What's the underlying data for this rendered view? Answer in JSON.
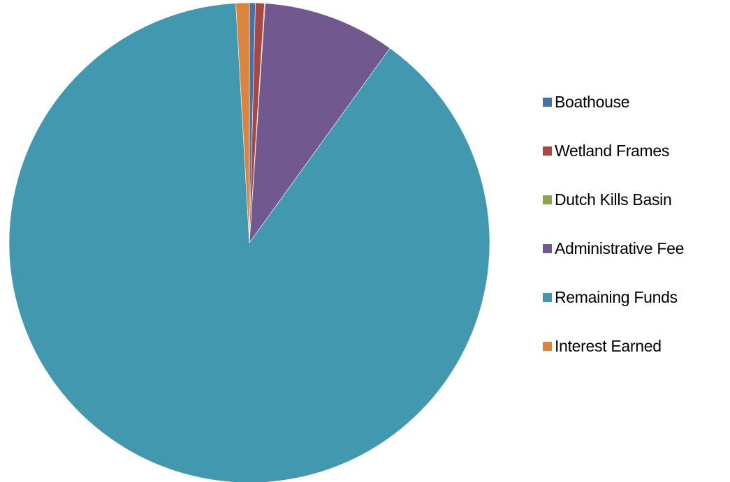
{
  "chart_data": {
    "type": "pie",
    "title": "",
    "start_angle_deg": 0,
    "direction": "clockwise",
    "legend_position": "right",
    "slices": [
      {
        "label": "Boathouse",
        "value": 0.4,
        "color": "#4472A8"
      },
      {
        "label": "Wetland Frames",
        "value": 0.6,
        "color": "#AA4643"
      },
      {
        "label": "Dutch Kills Basin",
        "value": 0.05,
        "color": "#89A54E"
      },
      {
        "label": "Administrative Fee",
        "value": 8.9,
        "color": "#71588F"
      },
      {
        "label": "Remaining Funds",
        "value": 89.2,
        "color": "#4198AF"
      },
      {
        "label": "Interest Earned",
        "value": 0.9,
        "color": "#DB843D"
      }
    ]
  }
}
